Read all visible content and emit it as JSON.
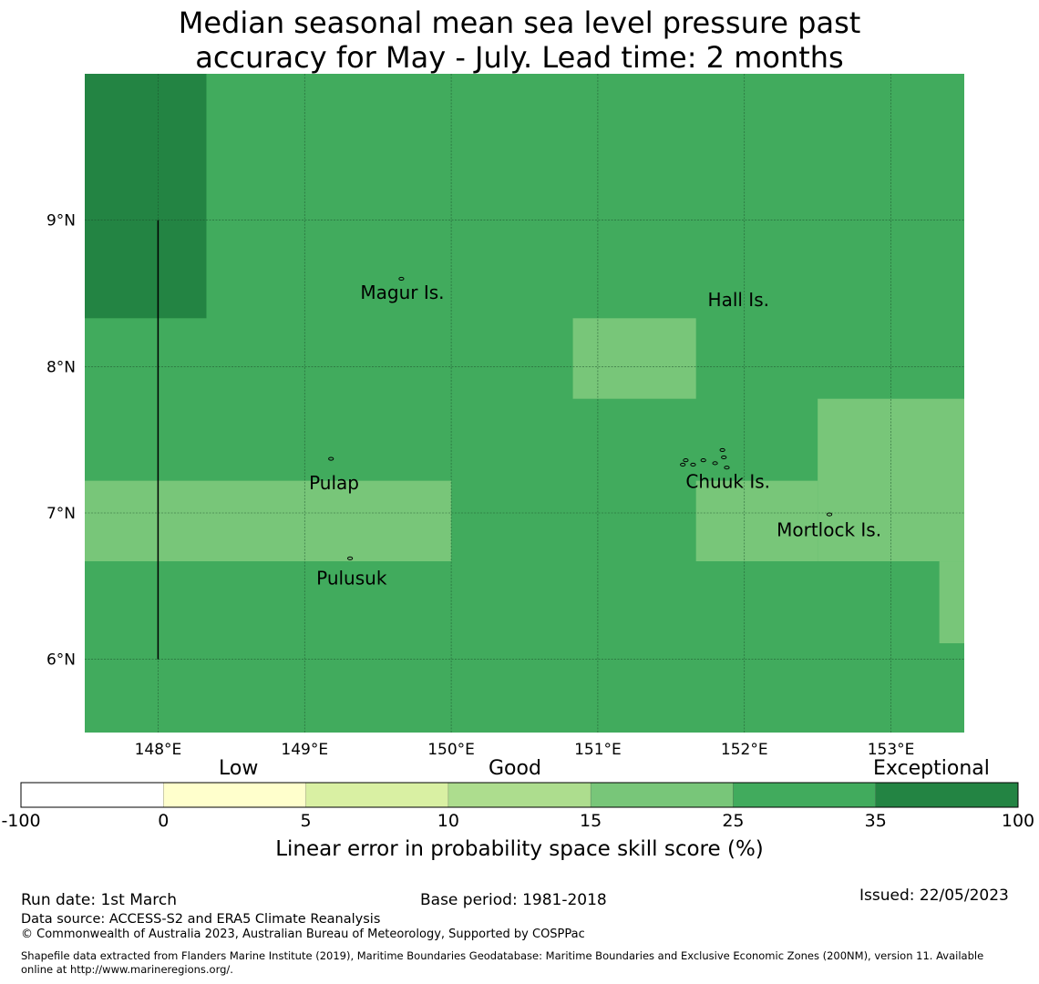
{
  "title": {
    "line1": "Median seasonal mean sea level pressure past",
    "line2": "accuracy for May - July. Lead time: 2 months"
  },
  "map": {
    "lon_range": [
      147.5,
      153.5
    ],
    "lat_range": [
      5.5,
      10.0
    ],
    "lon_ticks": [
      148,
      149,
      150,
      151,
      152,
      153
    ],
    "lon_tick_labels": [
      "148°E",
      "149°E",
      "150°E",
      "151°E",
      "152°E",
      "153°E"
    ],
    "lat_ticks": [
      6,
      7,
      8,
      9
    ],
    "lat_tick_labels": [
      "6°N",
      "7°N",
      "8°N",
      "9°N"
    ],
    "background_category": "25-35",
    "cells": [
      {
        "lon": [
          147.5,
          148.33
        ],
        "lat": [
          8.33,
          10.0
        ],
        "category": "35-100"
      },
      {
        "lon": [
          150.83,
          151.67
        ],
        "lat": [
          7.78,
          8.33
        ],
        "category": "15-25"
      },
      {
        "lon": [
          147.5,
          150.0
        ],
        "lat": [
          6.67,
          7.22
        ],
        "category": "15-25"
      },
      {
        "lon": [
          151.67,
          152.5
        ],
        "lat": [
          6.67,
          7.22
        ],
        "category": "15-25"
      },
      {
        "lon": [
          152.5,
          153.5
        ],
        "lat": [
          6.67,
          7.78
        ],
        "category": "15-25"
      },
      {
        "lon": [
          153.33,
          153.5
        ],
        "lat": [
          6.11,
          6.67
        ],
        "category": "15-25"
      }
    ],
    "boundary_line": {
      "lon": 148.0,
      "lat": [
        6.0,
        9.0
      ]
    },
    "places": [
      {
        "name": "Magur Is.",
        "lon": 149.38,
        "lat": 8.5
      },
      {
        "name": "Hall Is.",
        "lon": 151.75,
        "lat": 8.45
      },
      {
        "name": "Pulap",
        "lon": 149.03,
        "lat": 7.2
      },
      {
        "name": "Chuuk Is.",
        "lon": 151.6,
        "lat": 7.21
      },
      {
        "name": "Mortlock Is.",
        "lon": 152.22,
        "lat": 6.88
      },
      {
        "name": "Pulusuk",
        "lon": 149.08,
        "lat": 6.55
      }
    ],
    "islands": [
      {
        "lon": 149.66,
        "lat": 8.6
      },
      {
        "lon": 149.18,
        "lat": 7.37
      },
      {
        "lon": 149.31,
        "lat": 6.69
      },
      {
        "lon": 151.6,
        "lat": 7.36
      },
      {
        "lon": 151.65,
        "lat": 7.33
      },
      {
        "lon": 151.72,
        "lat": 7.36
      },
      {
        "lon": 151.8,
        "lat": 7.34
      },
      {
        "lon": 151.85,
        "lat": 7.43
      },
      {
        "lon": 151.86,
        "lat": 7.38
      },
      {
        "lon": 151.88,
        "lat": 7.31
      },
      {
        "lon": 151.58,
        "lat": 7.33
      },
      {
        "lon": 152.58,
        "lat": 6.99
      }
    ]
  },
  "colorbar": {
    "categories": [
      {
        "key": "-100-0",
        "color": "#ffffff"
      },
      {
        "key": "0-5",
        "color": "#ffffcc"
      },
      {
        "key": "5-10",
        "color": "#d9f0a3"
      },
      {
        "key": "10-15",
        "color": "#addd8e"
      },
      {
        "key": "15-25",
        "color": "#78c679"
      },
      {
        "key": "25-35",
        "color": "#41ab5d"
      },
      {
        "key": "35-100",
        "color": "#238443"
      }
    ],
    "ticks": [
      "-100",
      "0",
      "5",
      "10",
      "15",
      "25",
      "35",
      "100"
    ],
    "group_labels": {
      "low": "Low",
      "good": "Good",
      "exceptional": "Exceptional"
    },
    "title": "Linear error in probability space skill score (%)"
  },
  "footer": {
    "run_date": "Run date: 1st March",
    "base_period": "Base period: 1981-2018",
    "issued": "Issued: 22/05/2023",
    "data_source": "Data source: ACCESS-S2 and ERA5 Climate Reanalysis",
    "copyright": "© Commonwealth of Australia 2023, Australian Bureau of Meteorology, Supported by COSPPac",
    "shapefile_line1": "Shapefile data extracted from Flanders Marine Institute (2019), Maritime Boundaries Geodatabase: Maritime Boundaries and Exclusive Economic Zones (200NM), version 11. Available",
    "shapefile_line2": "online at http://www.marineregions.org/."
  }
}
